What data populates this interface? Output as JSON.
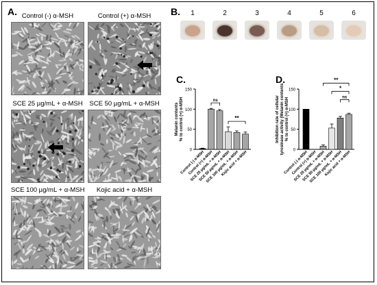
{
  "panel_a": {
    "letter": "A.",
    "captions": [
      "Control (-) α-MSH",
      "Control (+) α-MSH",
      "SCE 25 µg/mL + α-MSH",
      "SCE 50 µg/mL + α-MSH",
      "SCE 100 µg/mL + α-MSH",
      "Kojic acid + α-MSH"
    ]
  },
  "panel_b": {
    "letter": "B.",
    "tube_labels": [
      "1",
      "2",
      "3",
      "4",
      "5",
      "6"
    ],
    "tube_colors": [
      "#c9a38e",
      "#4a342c",
      "#7a5d52",
      "#b99c86",
      "#d6bda8",
      "#e3cbb7"
    ]
  },
  "panel_c": {
    "letter": "C."
  },
  "panel_d": {
    "letter": "D."
  },
  "chart_data": [
    {
      "type": "bar",
      "panel": "C",
      "categories": [
        "Control (-) α-MSH",
        "Control (+) α-MSH",
        "SCE 25 µg/mL + α-MSH",
        "SCE 50 µg/mL + α-MSH",
        "SCE 100 µg/mL + α-MSH",
        "Kojic acid + α-MSH"
      ],
      "values": [
        2,
        100,
        96,
        44,
        42,
        38
      ],
      "errors": [
        1,
        2,
        3,
        12,
        4,
        5
      ],
      "bar_colors": [
        "#000000",
        "#a6a6a6",
        "#a6a6a6",
        "#d9d9d9",
        "#a6a6a6",
        "#a6a6a6"
      ],
      "ylabel": [
        "Melanin contents",
        "% to control (+) α-MSH"
      ],
      "ylim": [
        0,
        150
      ],
      "yticks": [
        0,
        50,
        100,
        150
      ],
      "significance": [
        {
          "from": 1,
          "to": 2,
          "label": "ns"
        },
        {
          "from": 3,
          "to": 5,
          "label": "**"
        }
      ]
    },
    {
      "type": "bar",
      "panel": "D",
      "categories": [
        "Control (-) α-MSH",
        "Control (+) α-MSH",
        "SCE 25 µg/mL + α-MSH",
        "SCE 50 µg/mL + α-MSH",
        "SCE 100 µg/mL + α-MSH",
        "Kojic acid + α-MSH"
      ],
      "values": [
        100,
        0,
        8,
        53,
        78,
        87
      ],
      "errors": [
        0,
        0,
        3,
        10,
        4,
        3
      ],
      "bar_colors": [
        "#000000",
        "#a6a6a6",
        "#a6a6a6",
        "#e6e6e6",
        "#7f7f7f",
        "#a6a6a6"
      ],
      "ylabel": [
        "Inhibition rate of cellular",
        "tyrosinase activity (Melanin contents",
        "% to control (+) α-MSH"
      ],
      "ylim": [
        0,
        150
      ],
      "yticks": [
        0,
        50,
        100,
        150
      ],
      "significance": [
        {
          "from": 2,
          "to": 5,
          "label": "**",
          "level": 3
        },
        {
          "from": 3,
          "to": 5,
          "label": "*",
          "level": 2
        },
        {
          "from": 4,
          "to": 5,
          "label": "ns",
          "level": 1
        }
      ]
    }
  ]
}
